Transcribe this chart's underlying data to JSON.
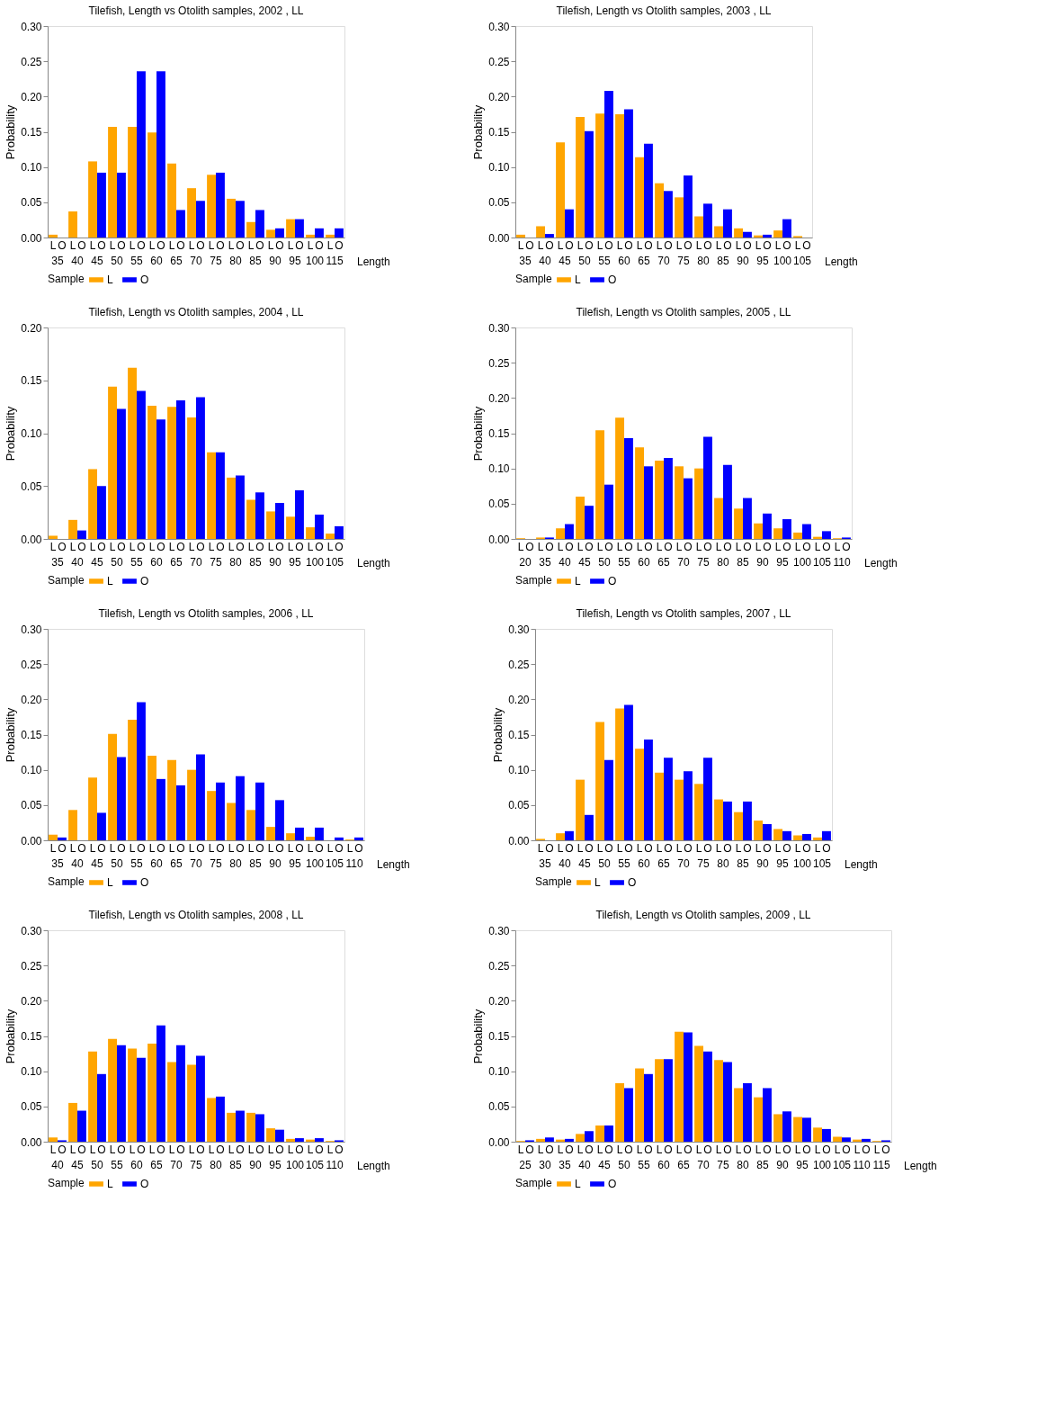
{
  "chart_data": [
    {
      "type": "bar",
      "title": "Tilefish, Length vs Otolith samples, 2002 , LL",
      "xlabel": "Length",
      "ylabel": "Probability",
      "legend_title": "Sample",
      "legend": "bottom",
      "grid": false,
      "categories": [
        "35",
        "40",
        "45",
        "50",
        "55",
        "60",
        "65",
        "70",
        "75",
        "80",
        "85",
        "90",
        "95",
        "100",
        "115"
      ],
      "ylim": [
        0,
        0.3
      ],
      "yticks": [
        {
          "value": 0,
          "label": "0.00"
        },
        {
          "value": 0.05,
          "label": "0.05"
        },
        {
          "value": 0.1,
          "label": "0.10"
        },
        {
          "value": 0.15,
          "label": "0.15"
        },
        {
          "value": 0.2,
          "label": "0.20"
        },
        {
          "value": 0.25,
          "label": "0.25"
        },
        {
          "value": 0.3,
          "label": "0.30"
        }
      ],
      "series": [
        {
          "name": "L",
          "color": "#ffa500",
          "values": [
            0.004,
            0.037,
            0.108,
            0.157,
            0.157,
            0.149,
            0.105,
            0.07,
            0.089,
            0.055,
            0.022,
            0.011,
            0.026,
            0.004,
            0.004
          ]
        },
        {
          "name": "O",
          "color": "#0000ff",
          "values": [
            0,
            0,
            0.092,
            0.092,
            0.236,
            0.236,
            0.039,
            0.052,
            0.092,
            0.052,
            0.039,
            0.013,
            0.026,
            0.013,
            0.013
          ]
        }
      ]
    },
    {
      "type": "bar",
      "title": "Tilefish, Length vs Otolith samples, 2003 , LL",
      "xlabel": "Length",
      "ylabel": "Probability",
      "legend_title": "Sample",
      "legend": "bottom",
      "grid": false,
      "categories": [
        "35",
        "40",
        "45",
        "50",
        "55",
        "60",
        "65",
        "70",
        "75",
        "80",
        "85",
        "90",
        "95",
        "100",
        "105"
      ],
      "ylim": [
        0,
        0.3
      ],
      "yticks": [
        {
          "value": 0,
          "label": "0.00"
        },
        {
          "value": 0.05,
          "label": "0.05"
        },
        {
          "value": 0.1,
          "label": "0.10"
        },
        {
          "value": 0.15,
          "label": "0.15"
        },
        {
          "value": 0.2,
          "label": "0.20"
        },
        {
          "value": 0.25,
          "label": "0.25"
        },
        {
          "value": 0.3,
          "label": "0.30"
        }
      ],
      "series": [
        {
          "name": "L",
          "color": "#ffa500",
          "values": [
            0.004,
            0.016,
            0.135,
            0.171,
            0.176,
            0.175,
            0.114,
            0.077,
            0.057,
            0.03,
            0.016,
            0.013,
            0.003,
            0.01,
            0.002
          ]
        },
        {
          "name": "O",
          "color": "#0000ff",
          "values": [
            0,
            0.005,
            0.04,
            0.151,
            0.208,
            0.182,
            0.133,
            0.066,
            0.088,
            0.048,
            0.04,
            0.008,
            0.004,
            0.026,
            0
          ]
        }
      ]
    },
    {
      "type": "bar",
      "title": "Tilefish, Length vs Otolith samples, 2004 , LL",
      "xlabel": "Length",
      "ylabel": "Probability",
      "legend_title": "Sample",
      "legend": "bottom",
      "grid": false,
      "categories": [
        "35",
        "40",
        "45",
        "50",
        "55",
        "60",
        "65",
        "70",
        "75",
        "80",
        "85",
        "90",
        "95",
        "100",
        "105"
      ],
      "ylim": [
        0,
        0.2
      ],
      "yticks": [
        {
          "value": 0,
          "label": "0.00"
        },
        {
          "value": 0.05,
          "label": "0.05"
        },
        {
          "value": 0.1,
          "label": "0.10"
        },
        {
          "value": 0.15,
          "label": "0.15"
        },
        {
          "value": 0.2,
          "label": "0.20"
        }
      ],
      "series": [
        {
          "name": "L",
          "color": "#ffa500",
          "values": [
            0.003,
            0.018,
            0.066,
            0.144,
            0.162,
            0.126,
            0.125,
            0.115,
            0.082,
            0.058,
            0.037,
            0.026,
            0.021,
            0.011,
            0.005
          ]
        },
        {
          "name": "O",
          "color": "#0000ff",
          "values": [
            0,
            0.008,
            0.05,
            0.123,
            0.14,
            0.113,
            0.131,
            0.134,
            0.082,
            0.06,
            0.044,
            0.034,
            0.046,
            0.023,
            0.012
          ]
        }
      ]
    },
    {
      "type": "bar",
      "title": "Tilefish, Length vs Otolith samples, 2005 , LL",
      "xlabel": "Length",
      "ylabel": "Probability",
      "legend_title": "Sample",
      "legend": "bottom",
      "grid": false,
      "categories": [
        "20",
        "35",
        "40",
        "45",
        "50",
        "55",
        "60",
        "65",
        "70",
        "75",
        "80",
        "85",
        "90",
        "95",
        "100",
        "105",
        "110"
      ],
      "ylim": [
        0,
        0.3
      ],
      "yticks": [
        {
          "value": 0,
          "label": "0.00"
        },
        {
          "value": 0.05,
          "label": "0.05"
        },
        {
          "value": 0.1,
          "label": "0.10"
        },
        {
          "value": 0.15,
          "label": "0.15"
        },
        {
          "value": 0.2,
          "label": "0.20"
        },
        {
          "value": 0.25,
          "label": "0.25"
        },
        {
          "value": 0.3,
          "label": "0.30"
        }
      ],
      "series": [
        {
          "name": "L",
          "color": "#ffa500",
          "values": [
            0.001,
            0.002,
            0.015,
            0.06,
            0.154,
            0.172,
            0.13,
            0.111,
            0.103,
            0.1,
            0.058,
            0.043,
            0.022,
            0.015,
            0.009,
            0.003,
            0.001
          ]
        },
        {
          "name": "O",
          "color": "#0000ff",
          "values": [
            0,
            0.002,
            0.021,
            0.047,
            0.077,
            0.143,
            0.103,
            0.115,
            0.086,
            0.145,
            0.105,
            0.058,
            0.036,
            0.028,
            0.021,
            0.011,
            0.002
          ]
        }
      ]
    },
    {
      "type": "bar",
      "title": "Tilefish, Length vs Otolith samples, 2006 , LL",
      "xlabel": "Length",
      "ylabel": "Probability",
      "legend_title": "Sample",
      "legend": "bottom",
      "grid": false,
      "categories": [
        "35",
        "40",
        "45",
        "50",
        "55",
        "60",
        "65",
        "70",
        "75",
        "80",
        "85",
        "90",
        "95",
        "100",
        "105",
        "110"
      ],
      "ylim": [
        0,
        0.3
      ],
      "yticks": [
        {
          "value": 0,
          "label": "0.00"
        },
        {
          "value": 0.05,
          "label": "0.05"
        },
        {
          "value": 0.1,
          "label": "0.10"
        },
        {
          "value": 0.15,
          "label": "0.15"
        },
        {
          "value": 0.2,
          "label": "0.20"
        },
        {
          "value": 0.25,
          "label": "0.25"
        },
        {
          "value": 0.3,
          "label": "0.30"
        }
      ],
      "series": [
        {
          "name": "L",
          "color": "#ffa500",
          "values": [
            0.008,
            0.043,
            0.089,
            0.151,
            0.171,
            0.12,
            0.114,
            0.1,
            0.07,
            0.053,
            0.043,
            0.019,
            0.01,
            0.005,
            0,
            0.001
          ]
        },
        {
          "name": "O",
          "color": "#0000ff",
          "values": [
            0.004,
            0,
            0.039,
            0.118,
            0.196,
            0.087,
            0.078,
            0.122,
            0.082,
            0.091,
            0.082,
            0.057,
            0.018,
            0.018,
            0.004,
            0.004
          ]
        }
      ]
    },
    {
      "type": "bar",
      "title": "Tilefish, Length vs Otolith samples, 2007 , LL",
      "xlabel": "Length",
      "ylabel": "Probability",
      "legend_title": "Sample",
      "legend": "bottom",
      "grid": false,
      "categories": [
        "35",
        "40",
        "45",
        "50",
        "55",
        "60",
        "65",
        "70",
        "75",
        "80",
        "85",
        "90",
        "95",
        "100",
        "105"
      ],
      "ylim": [
        0,
        0.3
      ],
      "yticks": [
        {
          "value": 0,
          "label": "0.00"
        },
        {
          "value": 0.05,
          "label": "0.05"
        },
        {
          "value": 0.1,
          "label": "0.10"
        },
        {
          "value": 0.15,
          "label": "0.15"
        },
        {
          "value": 0.2,
          "label": "0.20"
        },
        {
          "value": 0.25,
          "label": "0.25"
        },
        {
          "value": 0.3,
          "label": "0.30"
        }
      ],
      "series": [
        {
          "name": "L",
          "color": "#ffa500",
          "values": [
            0.002,
            0.01,
            0.086,
            0.168,
            0.187,
            0.13,
            0.096,
            0.086,
            0.08,
            0.058,
            0.04,
            0.028,
            0.016,
            0.007,
            0.004
          ]
        },
        {
          "name": "O",
          "color": "#0000ff",
          "values": [
            0,
            0.013,
            0.036,
            0.114,
            0.192,
            0.143,
            0.117,
            0.098,
            0.117,
            0.055,
            0.055,
            0.023,
            0.013,
            0.009,
            0.013
          ]
        }
      ]
    },
    {
      "type": "bar",
      "title": "Tilefish, Length vs Otolith samples, 2008 , LL",
      "xlabel": "Length",
      "ylabel": "Probability",
      "legend_title": "Sample",
      "legend": "bottom",
      "grid": false,
      "categories": [
        "40",
        "45",
        "50",
        "55",
        "60",
        "65",
        "70",
        "75",
        "80",
        "85",
        "90",
        "95",
        "100",
        "105",
        "110"
      ],
      "ylim": [
        0,
        0.3
      ],
      "yticks": [
        {
          "value": 0,
          "label": "0.00"
        },
        {
          "value": 0.05,
          "label": "0.05"
        },
        {
          "value": 0.1,
          "label": "0.10"
        },
        {
          "value": 0.15,
          "label": "0.15"
        },
        {
          "value": 0.2,
          "label": "0.20"
        },
        {
          "value": 0.25,
          "label": "0.25"
        },
        {
          "value": 0.3,
          "label": "0.30"
        }
      ],
      "series": [
        {
          "name": "L",
          "color": "#ffa500",
          "values": [
            0.006,
            0.055,
            0.128,
            0.146,
            0.132,
            0.139,
            0.113,
            0.109,
            0.062,
            0.041,
            0.041,
            0.019,
            0.004,
            0.003,
            0.001
          ]
        },
        {
          "name": "O",
          "color": "#0000ff",
          "values": [
            0.002,
            0.044,
            0.096,
            0.137,
            0.119,
            0.165,
            0.137,
            0.122,
            0.064,
            0.044,
            0.039,
            0.017,
            0.005,
            0.005,
            0.002
          ]
        }
      ]
    },
    {
      "type": "bar",
      "title": "Tilefish, Length vs Otolith samples, 2009 , LL",
      "xlabel": "Length",
      "ylabel": "Probability",
      "legend_title": "Sample",
      "legend": "bottom",
      "grid": false,
      "categories": [
        "25",
        "30",
        "35",
        "40",
        "45",
        "50",
        "55",
        "60",
        "65",
        "70",
        "75",
        "80",
        "85",
        "90",
        "95",
        "100",
        "105",
        "110",
        "115"
      ],
      "ylim": [
        0,
        0.3
      ],
      "yticks": [
        {
          "value": 0,
          "label": "0.00"
        },
        {
          "value": 0.05,
          "label": "0.05"
        },
        {
          "value": 0.1,
          "label": "0.10"
        },
        {
          "value": 0.15,
          "label": "0.15"
        },
        {
          "value": 0.2,
          "label": "0.20"
        },
        {
          "value": 0.25,
          "label": "0.25"
        },
        {
          "value": 0.3,
          "label": "0.30"
        }
      ],
      "series": [
        {
          "name": "L",
          "color": "#ffa500",
          "values": [
            0.001,
            0.004,
            0.003,
            0.011,
            0.023,
            0.083,
            0.104,
            0.117,
            0.156,
            0.136,
            0.116,
            0.076,
            0.063,
            0.039,
            0.035,
            0.02,
            0.007,
            0.003,
            0.001
          ]
        },
        {
          "name": "O",
          "color": "#0000ff",
          "values": [
            0.002,
            0.006,
            0.004,
            0.015,
            0.023,
            0.076,
            0.096,
            0.117,
            0.155,
            0.128,
            0.113,
            0.083,
            0.076,
            0.043,
            0.034,
            0.018,
            0.006,
            0.004,
            0.002
          ]
        }
      ]
    }
  ]
}
